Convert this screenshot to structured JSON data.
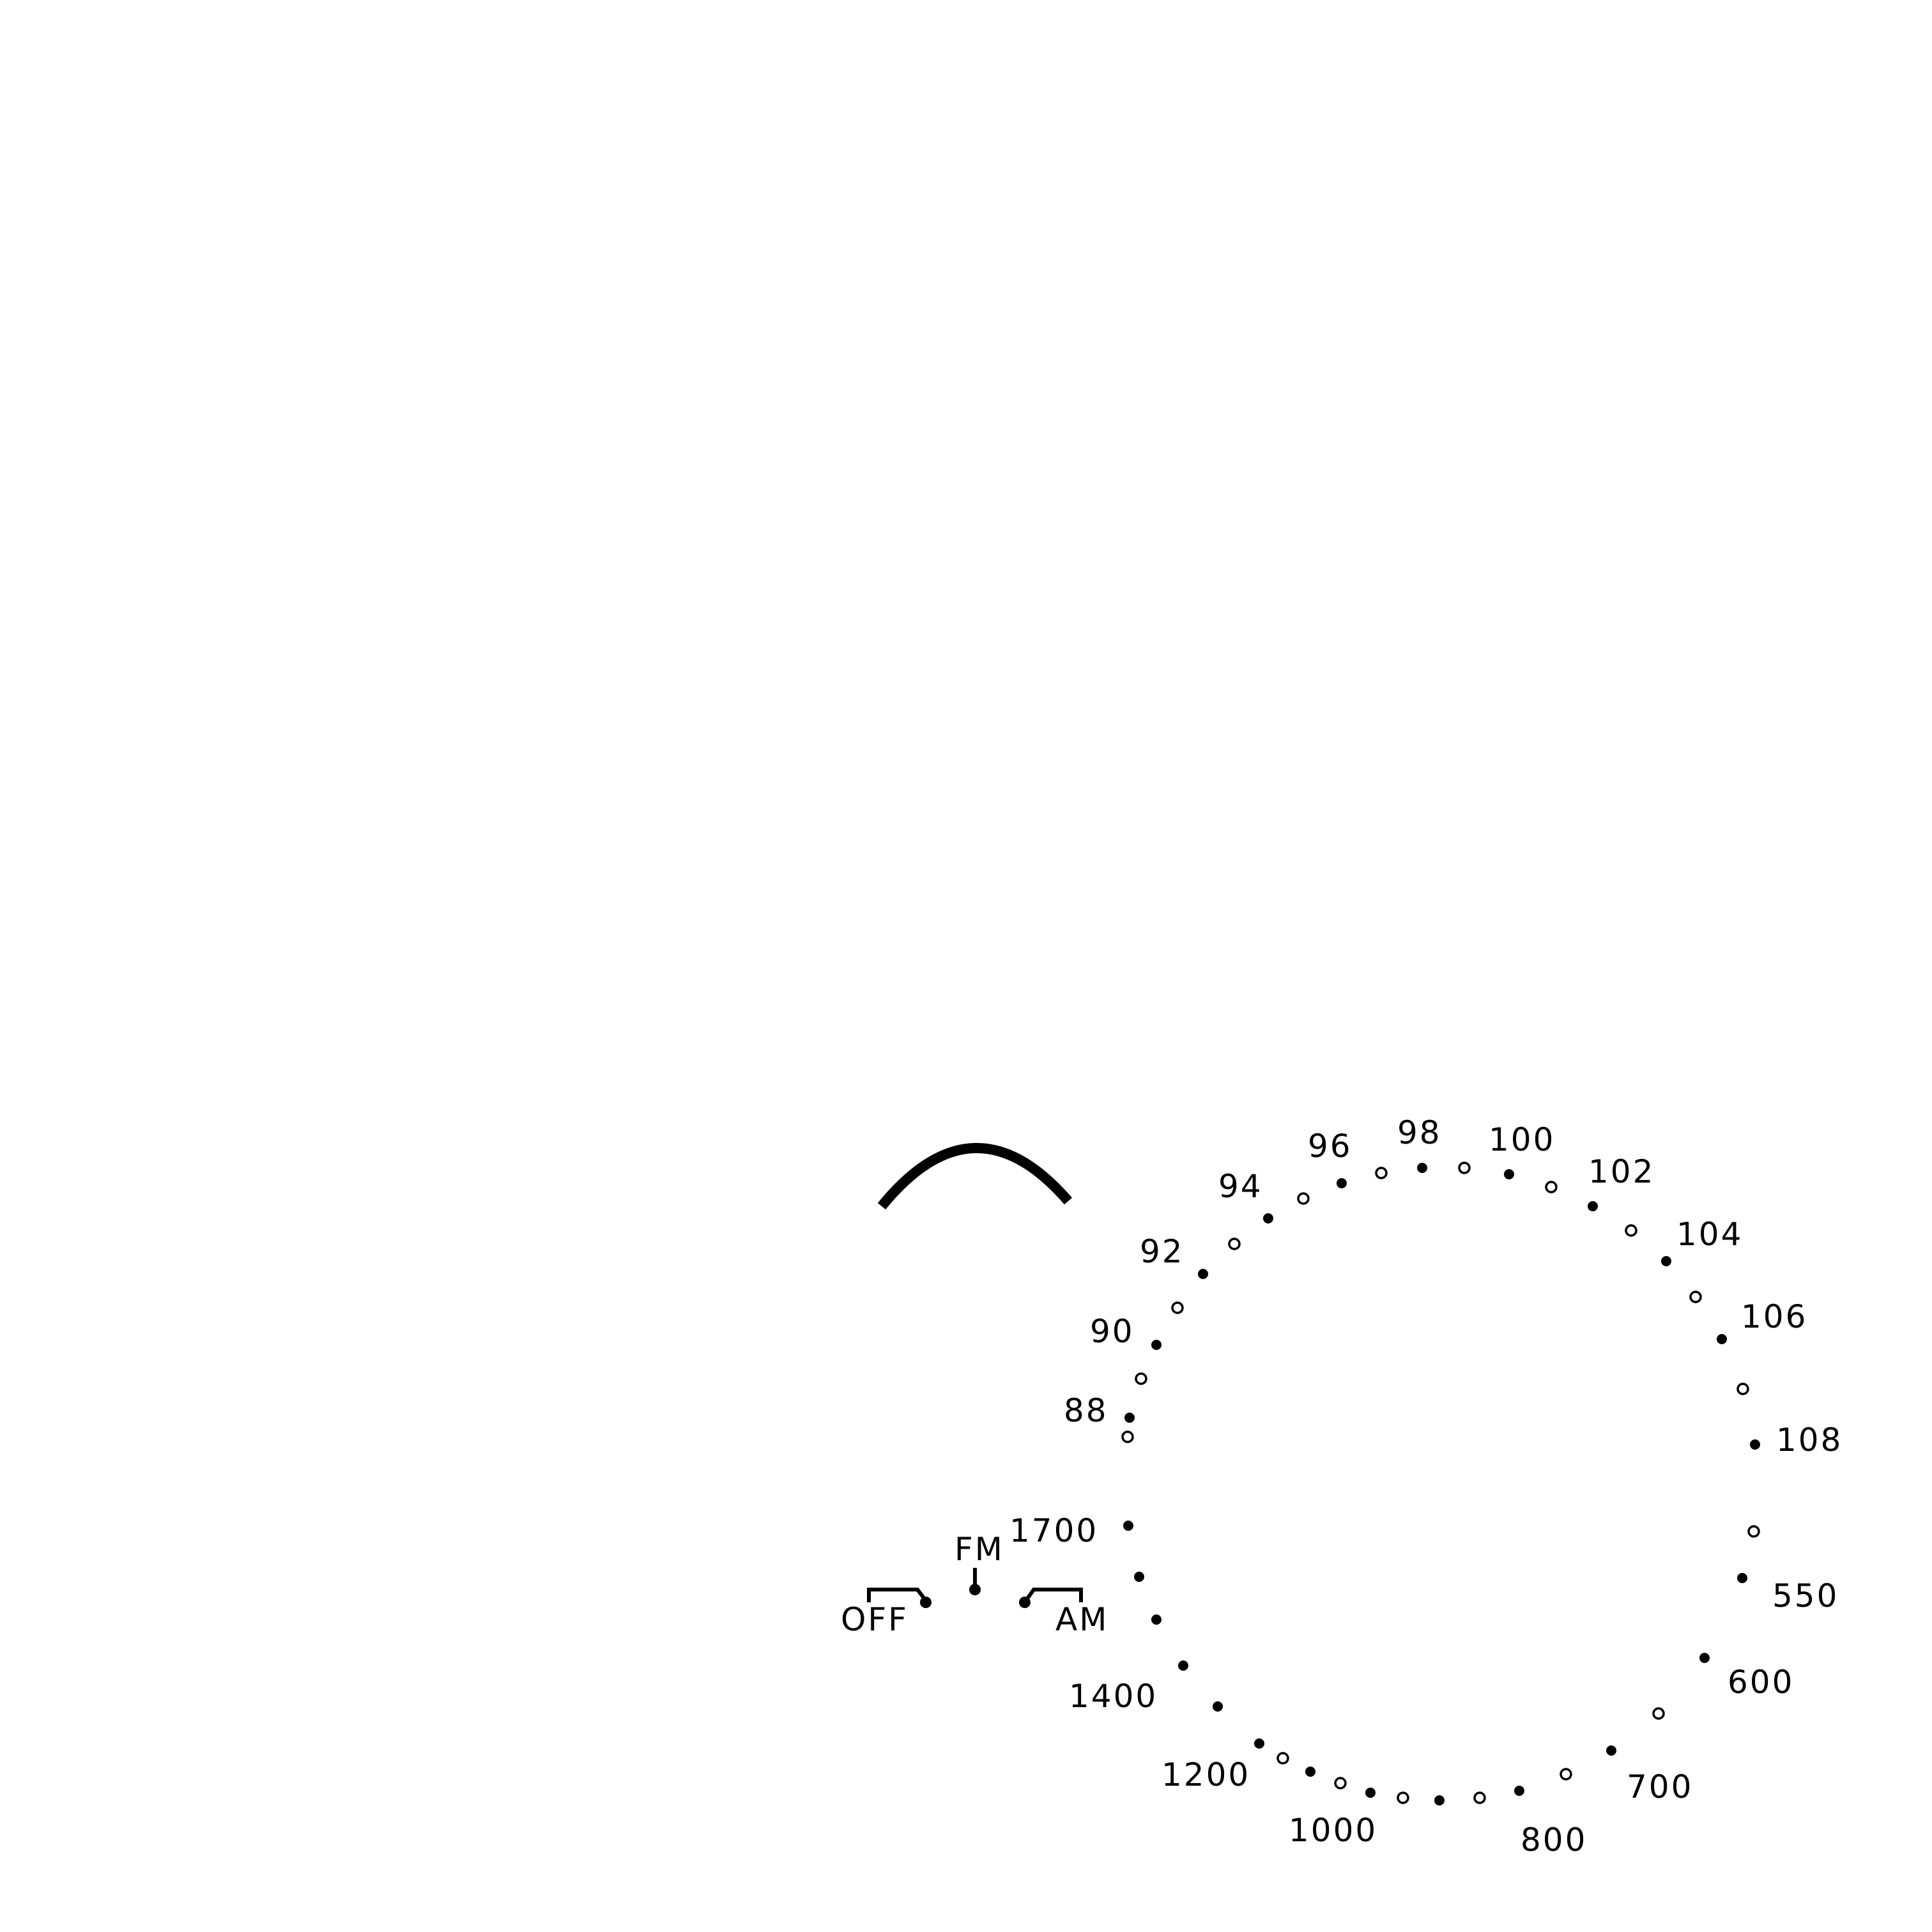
{
  "fm_scale": {
    "labels": [
      "88",
      "90",
      "92",
      "94",
      "96",
      "98",
      "100",
      "102",
      "104",
      "106",
      "108"
    ]
  },
  "am_scale": {
    "labels": [
      "550",
      "600",
      "700",
      "800",
      "1000",
      "1200",
      "1400",
      "1700"
    ]
  },
  "switch": {
    "off_label": "OFF",
    "fm_label": "FM",
    "am_label": "AM"
  },
  "colors": {
    "ink": "#000000",
    "background": "#ffffff"
  }
}
